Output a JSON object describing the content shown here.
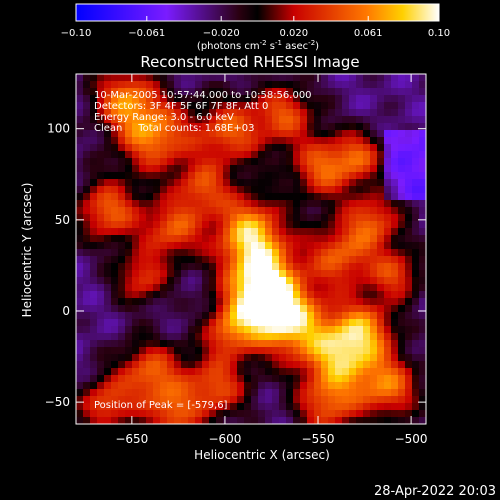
{
  "chart_data": {
    "type": "heatmap",
    "title": "Reconstructed RHESSI Image",
    "xlabel": "Heliocentric X (arcsec)",
    "ylabel": "Heliocentric Y (arcsec)",
    "xlim": [
      -680,
      -492
    ],
    "ylim": [
      -62,
      130
    ],
    "xticks": [
      -650,
      -600,
      -550,
      -500
    ],
    "yticks": [
      -50,
      0,
      50,
      100
    ],
    "colorbar": {
      "range": [
        -0.1,
        0.1
      ],
      "ticks": [
        "-0.10",
        "-0.061",
        "-0.020",
        "0.020",
        "0.061",
        "0.10"
      ],
      "unit_parts": [
        "(photons cm",
        "-2",
        " s",
        "-1",
        " asec",
        "-2",
        ")"
      ]
    },
    "annotations": [
      "10-Mar-2005 10:57:44.000 to 10:58:56.000",
      "Detectors: 3F 4F 5F 6F 7F 8F, Att 0",
      "Energy Range: 3.0 - 6.0 keV",
      "Clean     Total counts: 1.68E+03"
    ],
    "peak_label": "Position of Peak = [-579,6]",
    "peak": {
      "x": -579,
      "y": 6,
      "value": 0.1
    },
    "blobs": [
      {
        "x": -579,
        "y": 6,
        "r": 14,
        "v": 0.1
      },
      {
        "x": -583,
        "y": 30,
        "r": 14,
        "v": 0.05
      },
      {
        "x": -588,
        "y": 48,
        "r": 13,
        "v": 0.04
      },
      {
        "x": -563,
        "y": -8,
        "r": 14,
        "v": 0.05
      },
      {
        "x": -638,
        "y": 96,
        "r": 14,
        "v": 0.06
      },
      {
        "x": -654,
        "y": 117,
        "r": 12,
        "v": 0.05
      },
      {
        "x": -663,
        "y": 55,
        "r": 12,
        "v": 0.05
      },
      {
        "x": -628,
        "y": 45,
        "r": 12,
        "v": 0.045
      },
      {
        "x": -645,
        "y": 18,
        "r": 10,
        "v": 0.035
      },
      {
        "x": -598,
        "y": 98,
        "r": 13,
        "v": 0.045
      },
      {
        "x": -568,
        "y": 108,
        "r": 12,
        "v": 0.04
      },
      {
        "x": -548,
        "y": 78,
        "r": 12,
        "v": 0.045
      },
      {
        "x": -528,
        "y": 85,
        "r": 10,
        "v": 0.035
      },
      {
        "x": -538,
        "y": 30,
        "r": 13,
        "v": 0.045
      },
      {
        "x": -520,
        "y": 50,
        "r": 11,
        "v": 0.04
      },
      {
        "x": -525,
        "y": -10,
        "r": 12,
        "v": 0.045
      },
      {
        "x": -508,
        "y": 20,
        "r": 10,
        "v": 0.035
      },
      {
        "x": -538,
        "y": -25,
        "r": 14,
        "v": 0.06
      },
      {
        "x": -512,
        "y": -42,
        "r": 12,
        "v": 0.05
      },
      {
        "x": -545,
        "y": -52,
        "r": 12,
        "v": 0.04
      },
      {
        "x": -640,
        "y": -35,
        "r": 13,
        "v": 0.05
      },
      {
        "x": -665,
        "y": -52,
        "r": 10,
        "v": 0.04
      },
      {
        "x": -605,
        "y": -42,
        "r": 12,
        "v": 0.045
      },
      {
        "x": -598,
        "y": -12,
        "r": 10,
        "v": 0.035
      },
      {
        "x": -612,
        "y": 68,
        "r": 10,
        "v": 0.035
      },
      {
        "x": -628,
        "y": -58,
        "r": 10,
        "v": 0.035
      }
    ]
  },
  "footer": {
    "timestamp": "28-Apr-2022 20:03"
  }
}
